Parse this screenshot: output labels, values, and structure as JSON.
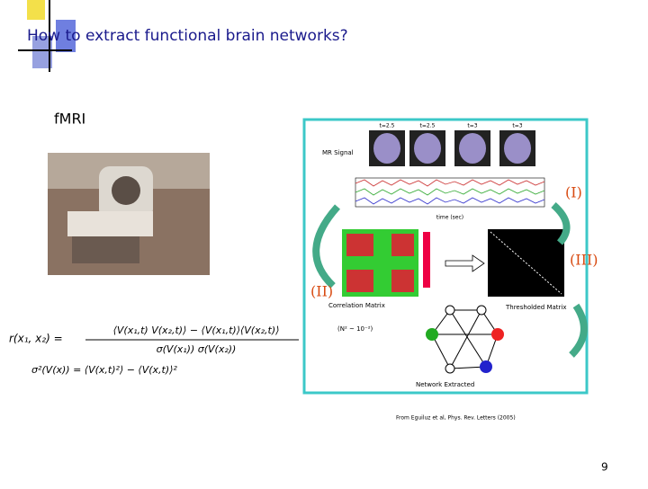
{
  "header": {
    "title": "How to extract functional brain networks?"
  },
  "body": {
    "label": "fMRI",
    "formulas": {
      "lhs": "r(x₁, x₂) =",
      "numerator": "⟨V(x₁,t) V(x₂,t)⟩ − ⟨V(x₁,t)⟩⟨V(x₂,t)⟩",
      "denominator": "σ(V(x₁)) σ(V(x₂))",
      "variance": "σ²(V(x)) = ⟨V(x,t)²⟩ − ⟨V(x,t)⟩²"
    },
    "figure": {
      "brain_times": [
        "t=2.5",
        "t=2.5",
        "t=3",
        "t=3"
      ],
      "signal_label": "MR Signal",
      "time_axis": "time (sec)",
      "correlation": "Correlation Matrix",
      "threshold": "Thresholded Matrix",
      "threshold_note": "(N² ~ 10⁻²)",
      "network": "Network Extracted",
      "steps": [
        "(I)",
        "(II)",
        "(III)"
      ]
    },
    "citation": "From Eguiluz et al, Phys. Rev. Letters (2005)"
  },
  "footer": {
    "page_number": "9"
  }
}
